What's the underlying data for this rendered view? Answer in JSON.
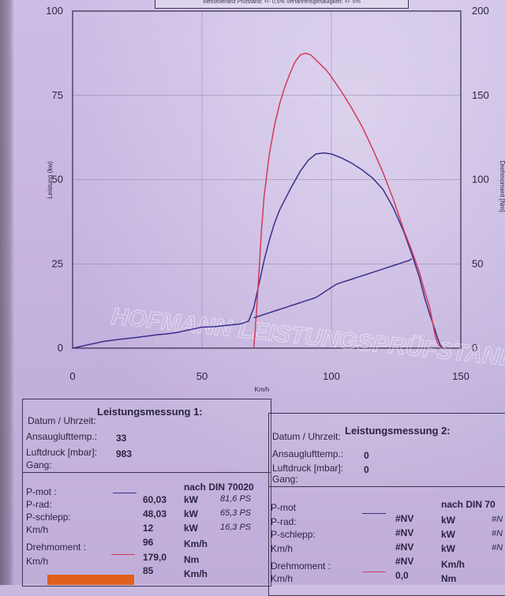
{
  "header_note": "Messtoleranz Prüfstand: +/- 0,5% Verfahrensgenauigkeit: +/- 5%",
  "watermark": "HOFMANN LEISTUNGSPRÜFSTAND",
  "chart_data": {
    "type": "line",
    "xlabel": "Km/h",
    "ylabel": "Leistung (kw)",
    "ylabel_right": "Drehmoment [Nm]",
    "xlim": [
      0,
      150
    ],
    "ylim": [
      0,
      100
    ],
    "ylim_right": [
      0,
      200
    ],
    "x_ticks": [
      "0",
      "50",
      "100",
      "150"
    ],
    "y_ticks": [
      "0",
      "25",
      "50",
      "75",
      "100"
    ],
    "y_ticks_right": [
      "0",
      "50",
      "100",
      "150",
      "200"
    ],
    "grid": true,
    "colors": {
      "power": "#3a2f8c",
      "torque": "#d23b5a"
    },
    "series": [
      {
        "axis": "left",
        "color": "#3a2f8c",
        "x": [
          0,
          12,
          18,
          24,
          30,
          33,
          36,
          40,
          45,
          48,
          50,
          55,
          60,
          65,
          68,
          70,
          72,
          74,
          76,
          78,
          80,
          84,
          88,
          91,
          94,
          97,
          100,
          104,
          108,
          112,
          116,
          120,
          124,
          128,
          131,
          134,
          136,
          138,
          140,
          141,
          142,
          143
        ],
        "y": [
          0,
          2,
          2.6,
          3.1,
          3.7,
          4,
          4.2,
          4.6,
          5.4,
          5.9,
          6.2,
          6.4,
          6.8,
          7.2,
          8,
          12,
          19,
          26,
          32,
          37,
          41,
          47,
          52.5,
          55.7,
          57.6,
          57.9,
          57.6,
          56.4,
          54.8,
          52.8,
          50.4,
          47,
          41.5,
          34.5,
          28,
          21,
          15,
          10,
          5.5,
          3,
          1,
          0
        ]
      },
      {
        "axis": "right",
        "color": "#d23b5a",
        "x": [
          70,
          71,
          72,
          73,
          74,
          76,
          78,
          80,
          82,
          84,
          86,
          88,
          90,
          92,
          94,
          96,
          98,
          100,
          104,
          108,
          112,
          116,
          120,
          124,
          128,
          131,
          134,
          136,
          138,
          139,
          140,
          141,
          142,
          143
        ],
        "y": [
          0,
          20,
          45,
          70,
          90,
          115,
          132,
          145,
          155,
          163,
          170,
          174,
          175,
          174,
          171,
          168,
          165,
          161,
          152,
          142,
          131,
          118,
          104,
          88,
          70,
          58,
          45,
          34,
          24,
          16,
          8,
          3,
          1,
          0
        ]
      },
      {
        "axis": "right",
        "color": "#3a2f8c",
        "x": [
          70,
          72,
          74,
          76,
          78,
          80,
          82,
          84,
          86,
          88,
          90,
          92,
          94,
          96,
          98,
          100,
          102,
          104,
          106,
          108,
          110,
          112,
          114,
          116,
          118,
          120,
          122,
          124,
          126,
          128,
          130,
          131
        ],
        "y": [
          18,
          19,
          20,
          21,
          22,
          23,
          24,
          25,
          26,
          27,
          28,
          29,
          30,
          32,
          34,
          36,
          38,
          39,
          40,
          41,
          42,
          43,
          44,
          45,
          46,
          47,
          48,
          49,
          50,
          51,
          52,
          53
        ]
      }
    ]
  },
  "panel1": {
    "title": "Leistungsmessung 1:",
    "datum_label": "Datum / Uhrzeit:",
    "ansaug_label": "Ansauglufttemp.:",
    "ansaug_value": "33",
    "luftdruck_label": "Luftdruck [mbar]:",
    "luftdruck_value": "983",
    "gang_label": "Gang:",
    "din_label": "nach DIN 70020",
    "rows": [
      {
        "label": "P-mot :",
        "value": "60,03",
        "unit": "kW",
        "ps": "81,6 PS"
      },
      {
        "label": "P-rad:",
        "value": "48,03",
        "unit": "kW",
        "ps": "65,3 PS"
      },
      {
        "label": "P-schlepp:",
        "value": "12",
        "unit": "kW",
        "ps": "16,3 PS"
      },
      {
        "label": "Km/h",
        "value": "96",
        "unit": "Km/h",
        "ps": ""
      },
      {
        "label": "Drehmoment :",
        "value": "179,0",
        "unit": "Nm",
        "ps": ""
      },
      {
        "label": "Km/h",
        "value": "85",
        "unit": "Km/h",
        "ps": ""
      }
    ]
  },
  "panel2": {
    "title": "Leistungsmessung 2:",
    "datum_label": "Datum / Uhrzeit:",
    "ansaug_label": "Ansauglufttemp.:",
    "ansaug_value": "0",
    "luftdruck_label": "Luftdruck [mbar]:",
    "luftdruck_value": "0",
    "gang_label": "Gang:",
    "din_label": "nach DIN 70",
    "rows": [
      {
        "label": "P-mot",
        "value": "#NV",
        "unit": "kW",
        "ps": "#N"
      },
      {
        "label": "P-rad:",
        "value": "#NV",
        "unit": "kW",
        "ps": "#N"
      },
      {
        "label": "P-schlepp:",
        "value": "#NV",
        "unit": "kW",
        "ps": "#N"
      },
      {
        "label": "Km/h",
        "value": "#NV",
        "unit": "Km/h",
        "ps": ""
      },
      {
        "label": "Drehmoment :",
        "value": "0,0",
        "unit": "Nm",
        "ps": ""
      },
      {
        "label": "Km/h",
        "value": "",
        "unit": "",
        "ps": ""
      }
    ]
  }
}
